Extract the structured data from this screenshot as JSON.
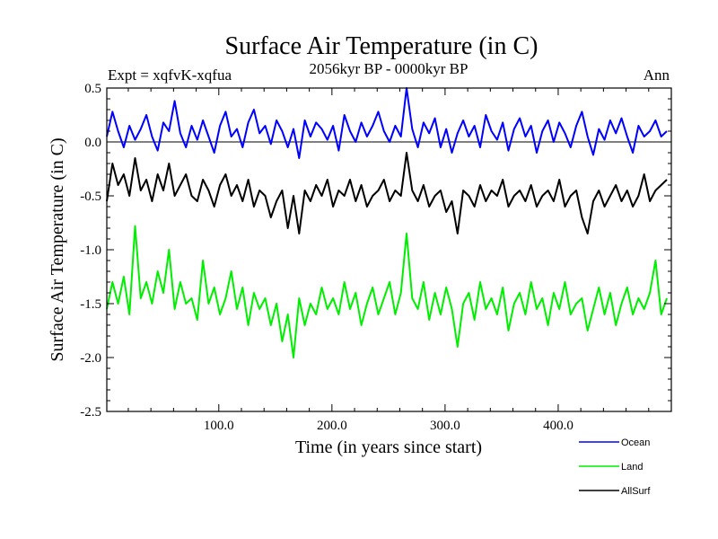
{
  "chart_data": {
    "type": "line",
    "title": "Surface Air Temperature (in C)",
    "subtitle": "2056kyr BP - 0000kyr BP",
    "left_label": "Expt = xqfvK-xqfua",
    "right_label": "Ann",
    "xlabel": "Time (in years since start)",
    "ylabel": "Surface Air Temperature (in C)",
    "xlim": [
      1,
      500
    ],
    "ylim": [
      -2.5,
      0.5
    ],
    "x_ticks": [
      100,
      200,
      300,
      400
    ],
    "x_tick_labels": [
      "100.0",
      "200.0",
      "300.0",
      "400.0"
    ],
    "y_ticks": [
      -2.5,
      -2.0,
      -1.5,
      -1.0,
      -0.5,
      0.0,
      0.5
    ],
    "y_tick_labels": [
      "-2.5",
      "-2.0",
      "-1.5",
      "-1.0",
      "-0.5",
      "0.0",
      "0.5"
    ],
    "zero_line": true,
    "legend_position": "bottom-right",
    "x_step": 5,
    "series": [
      {
        "name": "Ocean",
        "color": "#0000ff",
        "values": [
          0.05,
          0.28,
          0.1,
          -0.05,
          0.15,
          0.02,
          0.12,
          0.25,
          0.05,
          -0.08,
          0.18,
          0.1,
          0.38,
          0.08,
          -0.05,
          0.15,
          0.02,
          0.2,
          0.05,
          -0.1,
          0.15,
          0.28,
          0.05,
          0.12,
          -0.05,
          0.18,
          0.3,
          0.08,
          0.15,
          -0.02,
          0.2,
          0.1,
          -0.05,
          0.12,
          -0.15,
          0.2,
          0.05,
          0.18,
          0.12,
          0.02,
          0.15,
          -0.08,
          0.25,
          0.1,
          0.0,
          0.18,
          0.05,
          0.15,
          0.28,
          0.1,
          0.0,
          0.15,
          0.05,
          0.5,
          0.12,
          -0.05,
          0.18,
          0.08,
          0.22,
          -0.05,
          0.12,
          -0.1,
          0.08,
          0.2,
          0.05,
          0.15,
          -0.05,
          0.25,
          0.1,
          0.02,
          0.18,
          -0.08,
          0.12,
          0.22,
          0.05,
          0.15,
          -0.1,
          0.1,
          0.2,
          0.0,
          0.18,
          0.08,
          -0.05,
          0.15,
          0.28,
          0.05,
          -0.12,
          0.12,
          0.02,
          0.2,
          0.08,
          0.22,
          0.05,
          -0.1,
          0.15,
          0.05,
          0.1,
          0.2,
          0.05,
          0.1
        ]
      },
      {
        "name": "Land",
        "color": "#00ee00",
        "values": [
          -1.55,
          -1.3,
          -1.5,
          -1.25,
          -1.6,
          -0.78,
          -1.45,
          -1.3,
          -1.5,
          -1.2,
          -1.4,
          -1.0,
          -1.55,
          -1.3,
          -1.5,
          -1.45,
          -1.65,
          -1.1,
          -1.5,
          -1.35,
          -1.6,
          -1.45,
          -1.2,
          -1.55,
          -1.35,
          -1.7,
          -1.4,
          -1.55,
          -1.45,
          -1.7,
          -1.5,
          -1.85,
          -1.6,
          -2.0,
          -1.45,
          -1.7,
          -1.5,
          -1.6,
          -1.35,
          -1.55,
          -1.45,
          -1.6,
          -1.3,
          -1.55,
          -1.4,
          -1.7,
          -1.5,
          -1.35,
          -1.6,
          -1.45,
          -1.3,
          -1.6,
          -1.4,
          -0.85,
          -1.45,
          -1.55,
          -1.3,
          -1.65,
          -1.4,
          -1.6,
          -1.35,
          -1.55,
          -1.9,
          -1.5,
          -1.4,
          -1.65,
          -1.3,
          -1.55,
          -1.45,
          -1.6,
          -1.35,
          -1.75,
          -1.5,
          -1.4,
          -1.6,
          -1.3,
          -1.55,
          -1.45,
          -1.7,
          -1.4,
          -1.55,
          -1.3,
          -1.6,
          -1.5,
          -1.45,
          -1.75,
          -1.55,
          -1.35,
          -1.6,
          -1.4,
          -1.7,
          -1.5,
          -1.35,
          -1.6,
          -1.45,
          -1.55,
          -1.4,
          -1.1,
          -1.6,
          -1.45
        ]
      },
      {
        "name": "AllSurf",
        "color": "#000000",
        "values": [
          -0.55,
          -0.2,
          -0.4,
          -0.3,
          -0.5,
          -0.15,
          -0.45,
          -0.35,
          -0.55,
          -0.3,
          -0.45,
          -0.2,
          -0.5,
          -0.4,
          -0.3,
          -0.5,
          -0.55,
          -0.35,
          -0.45,
          -0.6,
          -0.4,
          -0.3,
          -0.5,
          -0.4,
          -0.55,
          -0.35,
          -0.6,
          -0.45,
          -0.5,
          -0.7,
          -0.55,
          -0.45,
          -0.8,
          -0.5,
          -0.85,
          -0.45,
          -0.55,
          -0.4,
          -0.5,
          -0.35,
          -0.6,
          -0.45,
          -0.5,
          -0.35,
          -0.55,
          -0.4,
          -0.6,
          -0.5,
          -0.45,
          -0.35,
          -0.55,
          -0.45,
          -0.5,
          -0.1,
          -0.45,
          -0.55,
          -0.4,
          -0.6,
          -0.5,
          -0.45,
          -0.65,
          -0.55,
          -0.85,
          -0.45,
          -0.5,
          -0.6,
          -0.4,
          -0.55,
          -0.45,
          -0.5,
          -0.35,
          -0.6,
          -0.5,
          -0.45,
          -0.55,
          -0.4,
          -0.6,
          -0.5,
          -0.45,
          -0.55,
          -0.35,
          -0.6,
          -0.5,
          -0.45,
          -0.7,
          -0.85,
          -0.55,
          -0.45,
          -0.6,
          -0.5,
          -0.4,
          -0.55,
          -0.45,
          -0.6,
          -0.5,
          -0.3,
          -0.55,
          -0.45,
          -0.4,
          -0.35
        ]
      }
    ]
  }
}
